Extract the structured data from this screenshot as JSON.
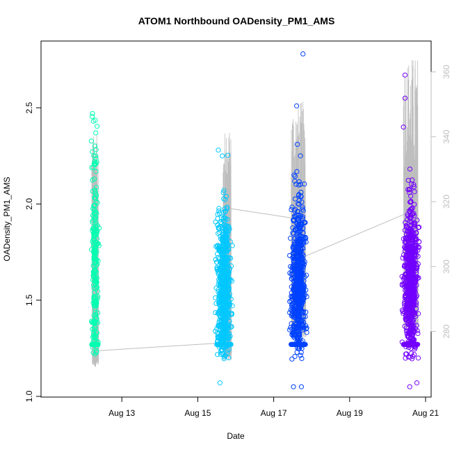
{
  "chart_data": {
    "type": "scatter",
    "title": "ATOM1 Northbound OADensity_PM1_AMS",
    "xlabel": "Date",
    "ylabel": "OADensity_PM1_AMS",
    "x_range": [
      "2016-08-11T00:00",
      "2016-08-21T00:00"
    ],
    "x_ticks": [
      "Aug 13",
      "Aug 15",
      "Aug 17",
      "Aug 19",
      "Aug 21"
    ],
    "x_tick_dates": [
      "2016-08-13",
      "2016-08-15",
      "2016-08-17",
      "2016-08-19",
      "2016-08-21"
    ],
    "ylim": [
      1.0,
      2.8
    ],
    "y_ticks": [
      1.0,
      1.5,
      2.0,
      2.5
    ],
    "y_tick_labels": [
      "1.0",
      "1.5",
      "2.0",
      "2.5"
    ],
    "y2_ticks": [
      280,
      300,
      320,
      340,
      360
    ],
    "y2_tick_labels": [
      "280",
      "300",
      "320",
      "340",
      "360"
    ],
    "y2lim": [
      260,
      365
    ],
    "grid": false,
    "legend": "none",
    "series": [
      {
        "color": "#00FFB2",
        "x_start": "2016-08-12T05:00",
        "x_end": "2016-08-12T09:00",
        "y_min": 1.22,
        "y_max": 2.47,
        "y_center": 1.72,
        "y_floor": 1.27,
        "points": [
          {
            "x": "2016-08-12T05:30",
            "y": 2.47
          },
          {
            "x": "2016-08-12T06:00",
            "y": 2.43
          },
          {
            "x": "2016-08-12T07:30",
            "y": 2.37
          },
          {
            "x": "2016-08-12T06:30",
            "y": 2.21
          },
          {
            "x": "2016-08-12T07:00",
            "y": 1.22
          }
        ]
      },
      {
        "color": "#00C8FF",
        "x_start": "2016-08-15T12:00",
        "x_end": "2016-08-15T21:00",
        "y_min": 1.07,
        "y_max": 2.28,
        "y_center": 1.55,
        "y_floor": 1.27,
        "points": [
          {
            "x": "2016-08-15T13:00",
            "y": 2.28
          },
          {
            "x": "2016-08-15T15:30",
            "y": 2.25
          },
          {
            "x": "2016-08-15T16:30",
            "y": 2.07
          },
          {
            "x": "2016-08-15T14:00",
            "y": 1.07
          }
        ]
      },
      {
        "color": "#0042FF",
        "x_start": "2016-08-17T11:00",
        "x_end": "2016-08-17T20:00",
        "y_min": 1.05,
        "y_max": 2.78,
        "y_center": 1.6,
        "y_floor": 1.27,
        "points": [
          {
            "x": "2016-08-17T18:30",
            "y": 2.78
          },
          {
            "x": "2016-08-17T14:30",
            "y": 2.51
          },
          {
            "x": "2016-08-17T15:00",
            "y": 2.31
          },
          {
            "x": "2016-08-17T12:30",
            "y": 1.05
          },
          {
            "x": "2016-08-17T17:30",
            "y": 1.05
          }
        ]
      },
      {
        "color": "#7300FF",
        "x_start": "2016-08-20T10:00",
        "x_end": "2016-08-20T19:00",
        "y_min": 1.05,
        "y_max": 2.67,
        "y_center": 1.6,
        "y_floor": 1.27,
        "points": [
          {
            "x": "2016-08-20T11:00",
            "y": 2.67
          },
          {
            "x": "2016-08-20T11:00",
            "y": 2.55
          },
          {
            "x": "2016-08-20T10:00",
            "y": 2.4
          },
          {
            "x": "2016-08-20T14:00",
            "y": 1.05
          },
          {
            "x": "2016-08-20T18:30",
            "y": 1.07
          }
        ]
      }
    ],
    "secondary_line": {
      "color": "#bebebe",
      "points": [
        {
          "x": "2016-08-12T07:00",
          "y": 274
        },
        {
          "x": "2016-08-15T16:00",
          "y": 276.5
        },
        {
          "x": "2016-08-15T19:00",
          "y": 318
        },
        {
          "x": "2016-08-17T11:00",
          "y": 315
        },
        {
          "x": "2016-08-17T19:00",
          "y": 303
        },
        {
          "x": "2016-08-20T10:00",
          "y": 316
        }
      ],
      "segments": [
        {
          "x_start": "2016-08-12T05:00",
          "x_end": "2016-08-12T09:00",
          "y_min": 269,
          "y_max": 341
        },
        {
          "x_start": "2016-08-15T16:00",
          "x_end": "2016-08-15T21:00",
          "y_min": 271,
          "y_max": 342
        },
        {
          "x_start": "2016-08-17T11:00",
          "x_end": "2016-08-17T20:00",
          "y_min": 278,
          "y_max": 351
        },
        {
          "x_start": "2016-08-20T10:00",
          "x_end": "2016-08-20T19:00",
          "y_min": 280,
          "y_max": 365
        }
      ]
    }
  }
}
